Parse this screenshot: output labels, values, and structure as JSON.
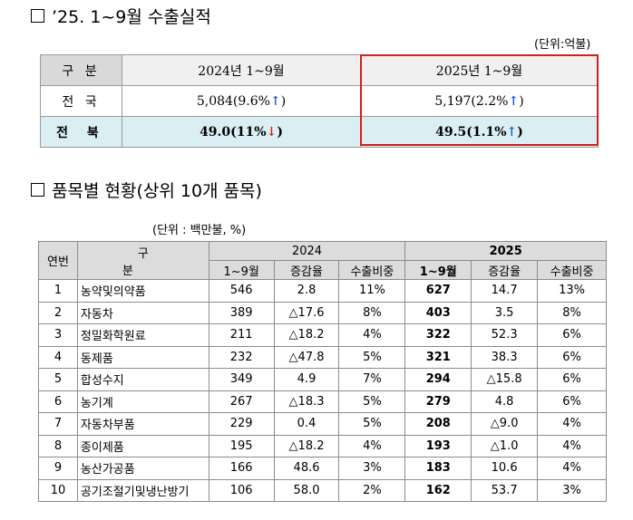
{
  "section1": {
    "title": "’25. 1~9월 수출실적",
    "unit": "(단위:억불)",
    "header": [
      "구  분",
      "2024년 1~9월",
      "2025년 1~9월"
    ],
    "rows": [
      {
        "label": "전  국",
        "v2024": "5,084(9.6%",
        "arrow2024": "↑",
        "close2024": ")",
        "v2025": "5,197(2.2%",
        "arrow2025": "↑",
        "close2025": ")"
      },
      {
        "label": "전  북",
        "v2024": "49.0(11%",
        "arrow2024": "↓",
        "close2024": ")",
        "v2025": "49.5(1.1%",
        "arrow2025": "↑",
        "close2025": ")"
      }
    ]
  },
  "section2": {
    "title": "품목별 현황(상위 10개 품목)",
    "unit": "(단위 : 백만불, %)",
    "col_no": "연번",
    "col_name": "구 분",
    "year2024": "2024",
    "year2025": "2025",
    "sub": [
      "1~9월",
      "증감율",
      "수출비중"
    ],
    "rows": [
      {
        "no": "1",
        "name": "농약및의약품",
        "a1": "546",
        "a2": "2.8",
        "a3": "11%",
        "b1": "627",
        "b2": "14.7",
        "b3": "13%"
      },
      {
        "no": "2",
        "name": "자동차",
        "a1": "389",
        "a2": "△17.6",
        "a3": "8%",
        "b1": "403",
        "b2": "3.5",
        "b3": "8%"
      },
      {
        "no": "3",
        "name": "정밀화학원료",
        "a1": "211",
        "a2": "△18.2",
        "a3": "4%",
        "b1": "322",
        "b2": "52.3",
        "b3": "6%"
      },
      {
        "no": "4",
        "name": "동제품",
        "a1": "232",
        "a2": "△47.8",
        "a3": "5%",
        "b1": "321",
        "b2": "38.3",
        "b3": "6%"
      },
      {
        "no": "5",
        "name": "합성수지",
        "a1": "349",
        "a2": "4.9",
        "a3": "7%",
        "b1": "294",
        "b2": "△15.8",
        "b3": "6%"
      },
      {
        "no": "6",
        "name": "농기계",
        "a1": "267",
        "a2": "△18.3",
        "a3": "5%",
        "b1": "279",
        "b2": "4.8",
        "b3": "6%"
      },
      {
        "no": "7",
        "name": "자동차부품",
        "a1": "229",
        "a2": "0.4",
        "a3": "5%",
        "b1": "208",
        "b2": "△9.0",
        "b3": "4%"
      },
      {
        "no": "8",
        "name": "종이제품",
        "a1": "195",
        "a2": "△18.2",
        "a3": "4%",
        "b1": "193",
        "b2": "△1.0",
        "b3": "4%"
      },
      {
        "no": "9",
        "name": "농산가공품",
        "a1": "166",
        "a2": "48.6",
        "a3": "3%",
        "b1": "183",
        "b2": "10.6",
        "b3": "4%"
      },
      {
        "no": "10",
        "name": "공기조절기및냉난방기",
        "a1": "106",
        "a2": "58.0",
        "a3": "2%",
        "b1": "162",
        "b2": "53.7",
        "b3": "3%"
      }
    ]
  }
}
